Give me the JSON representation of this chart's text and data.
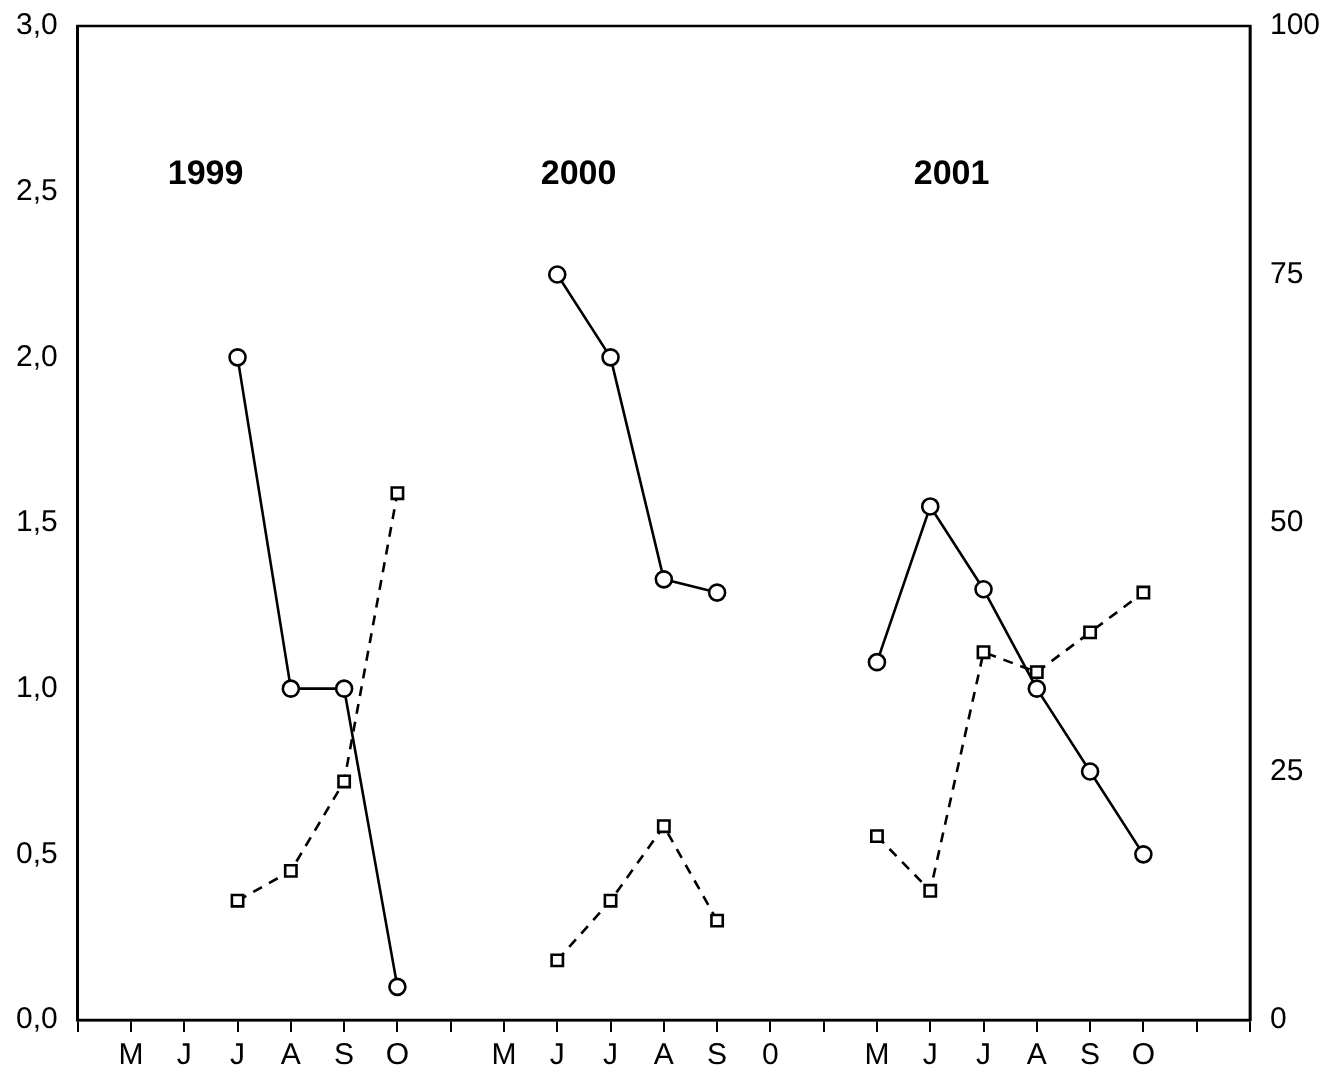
{
  "chart_data": {
    "type": "line",
    "categories": [
      null,
      "M",
      "J",
      "J",
      "A",
      "S",
      "O",
      null,
      "M",
      "J",
      "J",
      "A",
      "S",
      "0",
      null,
      "M",
      "J",
      "J",
      "A",
      "S",
      "O",
      null,
      null
    ],
    "series": [
      {
        "color": "#000000",
        "marker": "circle",
        "line_style": "solid",
        "values": [
          null,
          null,
          null,
          2.0,
          1.0,
          1.0,
          0.1,
          null,
          null,
          2.25,
          2.0,
          1.33,
          1.29,
          null,
          null,
          1.08,
          1.55,
          1.3,
          1.0,
          0.75,
          0.5,
          null,
          null
        ]
      },
      {
        "color": "#000000",
        "marker": "square",
        "line_style": "dashed",
        "axis": "y2",
        "values": [
          null,
          null,
          null,
          12,
          15,
          24,
          53,
          null,
          null,
          6,
          12,
          19.5,
          10,
          null,
          null,
          18.5,
          13,
          37,
          35,
          39,
          43,
          null,
          null
        ]
      }
    ],
    "ylim": [
      0,
      3
    ],
    "yticks": [
      {
        "value": 0,
        "label": "0,0"
      },
      {
        "value": 0.5,
        "label": "0,5"
      },
      {
        "value": 1,
        "label": "1,0"
      },
      {
        "value": 1.5,
        "label": "1,5"
      },
      {
        "value": 2,
        "label": "2,0"
      },
      {
        "value": 2.5,
        "label": "2,5"
      },
      {
        "value": 3,
        "label": "3,0"
      }
    ],
    "y2lim": [
      0,
      100
    ],
    "y2ticks": [
      0,
      25,
      50,
      75,
      100
    ],
    "annotations": [
      "1999",
      "2000",
      "2001"
    ],
    "grid": false,
    "legend": false
  }
}
